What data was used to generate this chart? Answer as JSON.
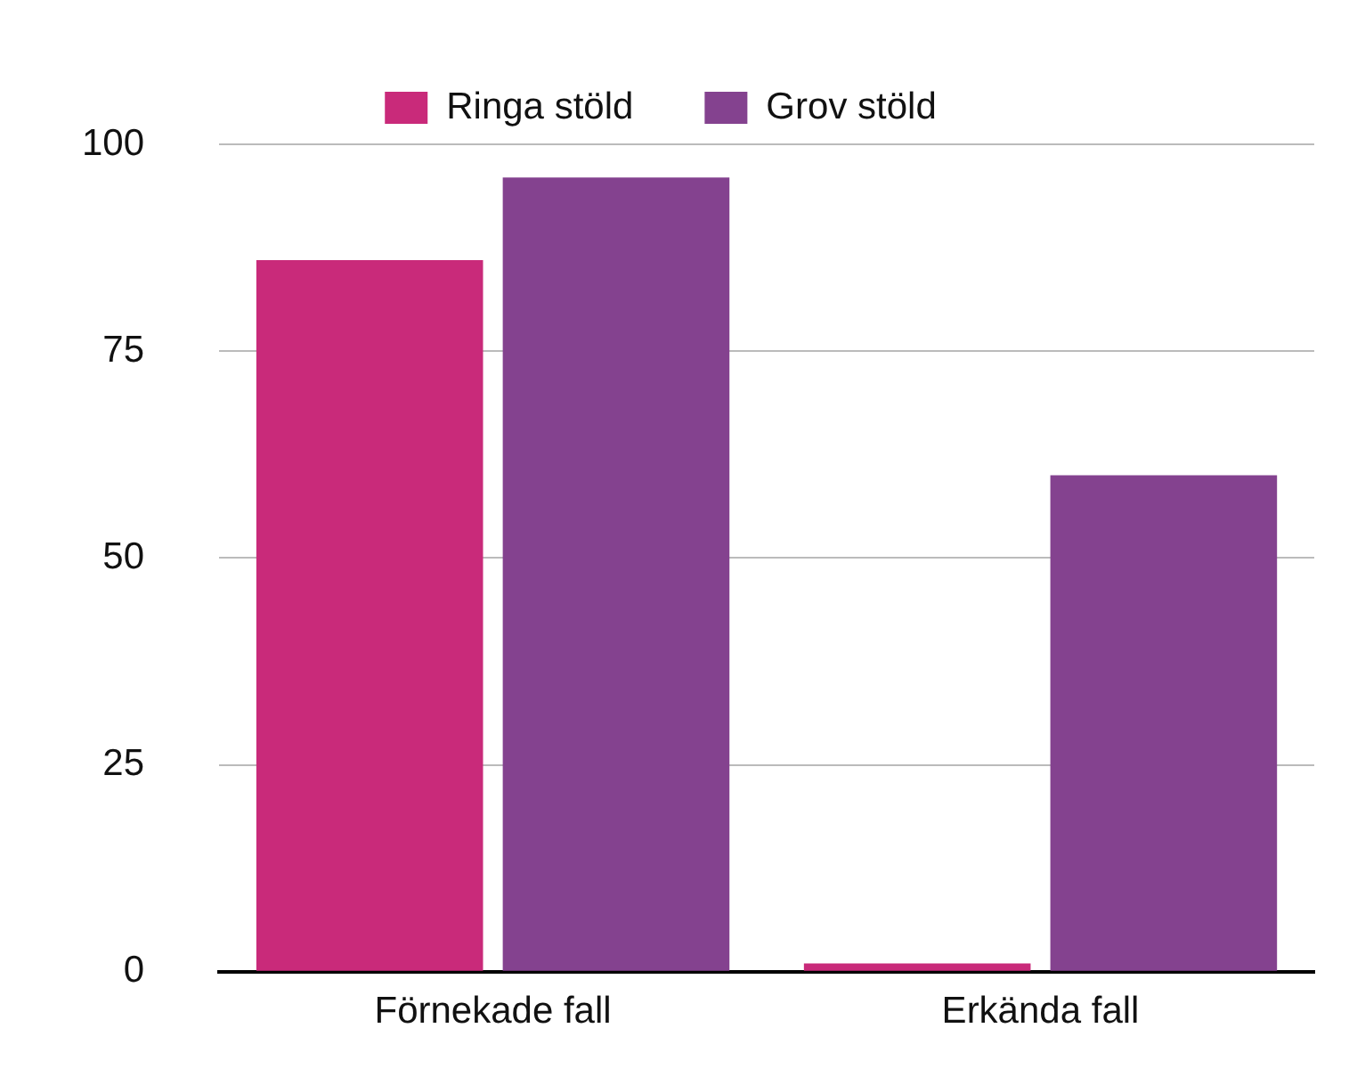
{
  "chart_data": {
    "type": "bar",
    "categories": [
      "Förnekade fall",
      "Erkända fall"
    ],
    "series": [
      {
        "name": "Ringa stöld",
        "color": "#c92a7a",
        "values": [
          86,
          1
        ]
      },
      {
        "name": "Grov stöld",
        "color": "#84428f",
        "values": [
          96,
          60
        ]
      }
    ],
    "ylim": [
      0,
      100
    ],
    "yticks": [
      0,
      25,
      50,
      75,
      100
    ],
    "grid": "y",
    "legend": "top"
  }
}
